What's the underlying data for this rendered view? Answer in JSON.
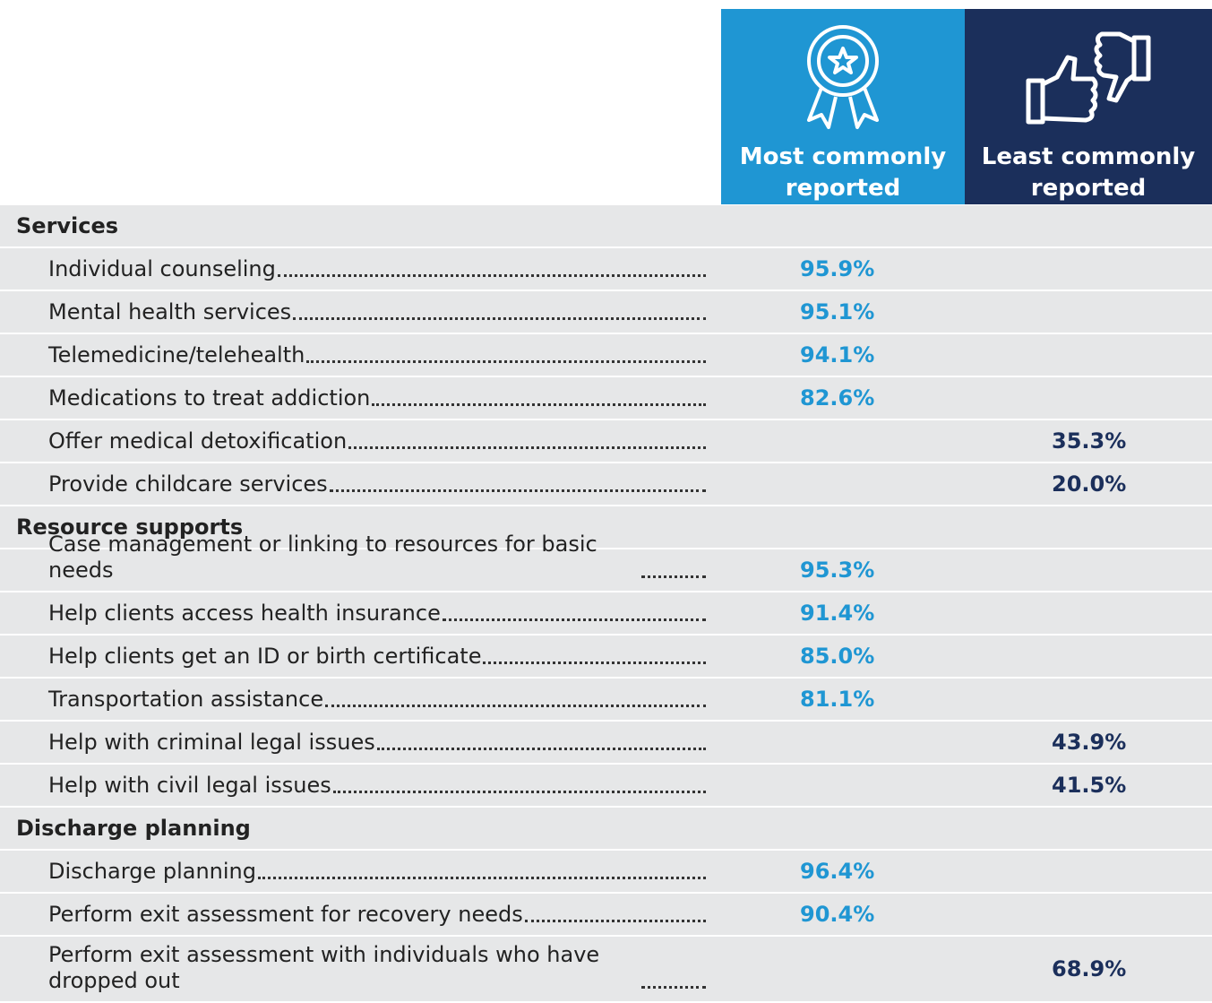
{
  "header": {
    "most": "Most commonly reported",
    "least": "Least commonly reported"
  },
  "sections": [
    {
      "title": "Services",
      "rows": [
        {
          "label": "Individual counseling",
          "most": "95.9%"
        },
        {
          "label": "Mental health services",
          "most": "95.1%"
        },
        {
          "label": "Telemedicine/telehealth",
          "most": "94.1%"
        },
        {
          "label": "Medications to treat addiction",
          "most": "82.6%"
        },
        {
          "label": "Offer medical detoxification",
          "least": "35.3%"
        },
        {
          "label": "Provide childcare services",
          "least": "20.0%"
        }
      ]
    },
    {
      "title": "Resource supports",
      "rows": [
        {
          "label": "Case management or linking to resources for basic needs",
          "most": "95.3%"
        },
        {
          "label": "Help clients access health insurance",
          "most": "91.4%"
        },
        {
          "label": "Help clients get an ID or birth certificate",
          "most": "85.0%"
        },
        {
          "label": "Transportation assistance",
          "most": "81.1%"
        },
        {
          "label": "Help with criminal legal issues",
          "least": "43.9%"
        },
        {
          "label": "Help with civil legal issues",
          "least": "41.5%"
        }
      ]
    },
    {
      "title": "Discharge planning",
      "rows": [
        {
          "label": "Discharge planning",
          "most": "96.4%"
        },
        {
          "label": "Perform exit assessment for recovery needs",
          "most": "90.4%"
        },
        {
          "label": "Perform exit assessment with individuals who have dropped out",
          "least": "68.9%"
        }
      ]
    }
  ]
}
